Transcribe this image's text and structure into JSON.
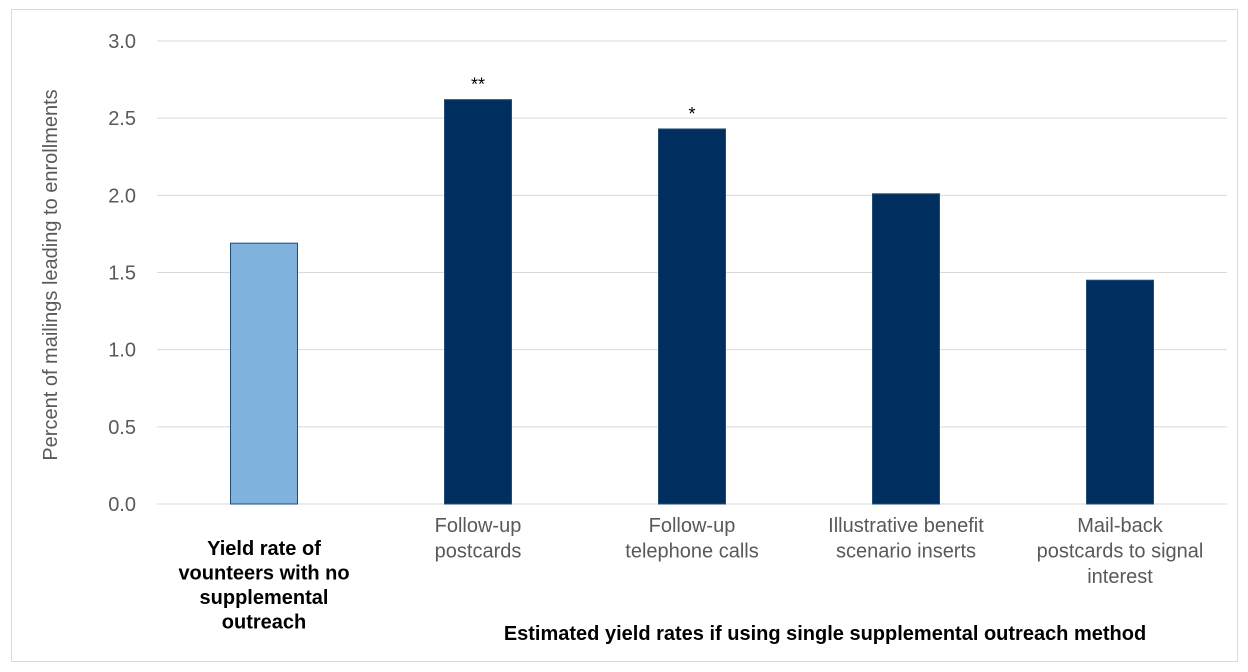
{
  "chart_data": {
    "type": "bar",
    "categories": [
      [
        "Yield rate of",
        "vounteers with no",
        "supplemental",
        "outreach"
      ],
      [
        "Follow-up",
        "postcards"
      ],
      [
        "Follow-up",
        "telephone calls"
      ],
      [
        "Illustrative benefit",
        "scenario inserts"
      ],
      [
        "Mail-back",
        "postcards to signal",
        "interest"
      ]
    ],
    "values": [
      1.69,
      2.62,
      2.43,
      2.01,
      1.45
    ],
    "annotations": [
      "",
      "**",
      "*",
      "",
      ""
    ],
    "bar_colors": [
      "#7fb3de",
      "#002f5f",
      "#002f5f",
      "#002f5f",
      "#002f5f"
    ],
    "bar_stroke": "#1f4e79",
    "category_bold": [
      true,
      false,
      false,
      false,
      false
    ],
    "ylabel": "Percent of mailings leading to enrollments",
    "xlabel": "Estimated yield rates if using single supplemental outreach method",
    "ylim": [
      0,
      3.0
    ],
    "yticks": [
      "0.0",
      "0.5",
      "1.0",
      "1.5",
      "2.0",
      "2.5",
      "3.0"
    ],
    "grid": true,
    "legend": "none",
    "colors": {
      "gridline": "#d9d9d9",
      "tick_text": "#595959"
    }
  }
}
